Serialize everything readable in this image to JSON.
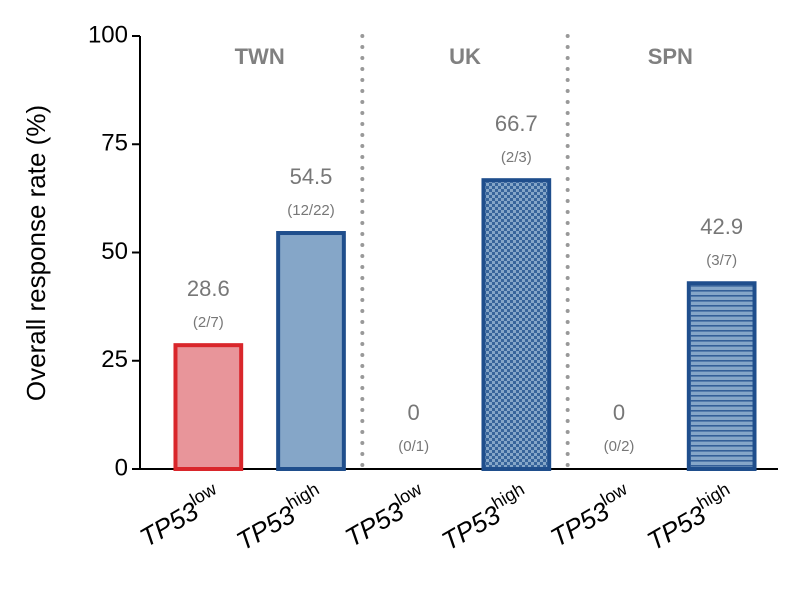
{
  "chart_data": {
    "type": "bar",
    "ylabel": "Overall response rate (%)",
    "categories": [
      "TP53low",
      "TP53high",
      "TP53low",
      "TP53high",
      "TP53low",
      "TP53high"
    ],
    "values": [
      28.6,
      54.5,
      0,
      66.7,
      0,
      42.9
    ],
    "annotations": [
      "(2/7)",
      "(12/22)",
      "(0/1)",
      "(2/3)",
      "(0/2)",
      "(3/7)"
    ],
    "groups": [
      "TWN",
      "UK",
      "SPN"
    ],
    "colors": [
      "#e8959a",
      "#85a6c8",
      "#85a6c8",
      "#85a6c8",
      "#85a6c8",
      "#85a6c8"
    ],
    "edgecolors": [
      "#d9262b",
      "#1f4e8c",
      "#1f4e8c",
      "#1f4e8c",
      "#1f4e8c",
      "#1f4e8c"
    ],
    "hatches": [
      "none",
      "none",
      "none",
      "checker",
      "none",
      "horizontal"
    ],
    "ylim": [
      0,
      100
    ],
    "yticks": [
      0,
      25,
      50,
      75,
      100
    ],
    "grid": false
  }
}
